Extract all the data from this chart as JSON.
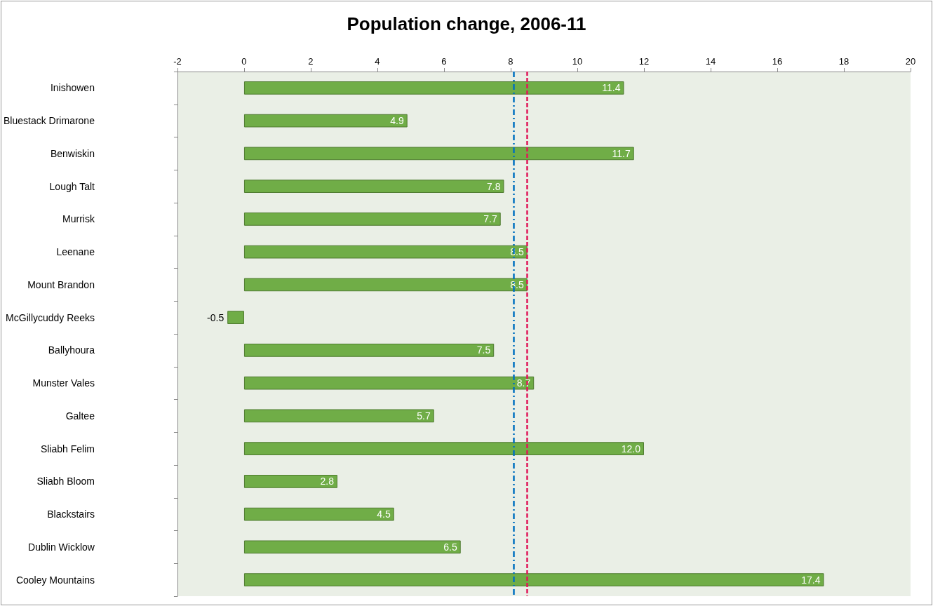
{
  "chart_data": {
    "type": "bar",
    "orientation": "horizontal",
    "title": "Population change, 2006-11",
    "categories": [
      "Inishowen",
      "Bluestack Drimarone",
      "Benwiskin",
      "Lough Talt",
      "Murrisk",
      "Leenane",
      "Mount Brandon",
      "McGillycuddy Reeks",
      "Ballyhoura",
      "Munster Vales",
      "Galtee",
      "Sliabh Felim",
      "Sliabh Bloom",
      "Blackstairs",
      "Dublin Wicklow",
      "Cooley Mountains"
    ],
    "values": [
      11.4,
      4.9,
      11.7,
      7.8,
      7.7,
      8.5,
      8.5,
      -0.5,
      7.5,
      8.7,
      5.7,
      12.0,
      2.8,
      4.5,
      6.5,
      17.4
    ],
    "value_labels": [
      "11.4",
      "4.9",
      "11.7",
      "7.8",
      "7.7",
      "8.5",
      "8.5",
      "-0.5",
      "7.5",
      "8.7",
      "5.7",
      "12.0",
      "2.8",
      "4.5",
      "6.5",
      "17.4"
    ],
    "color": "#70ad47",
    "xlim": [
      -2,
      20
    ],
    "xticks": [
      -2,
      0,
      2,
      4,
      6,
      8,
      10,
      12,
      14,
      16,
      18,
      20
    ],
    "ref_lines": [
      {
        "axis": "x",
        "value": 8.1,
        "color": "#0070c0",
        "line_style": "dashdot"
      },
      {
        "axis": "x",
        "value": 8.5,
        "color": "#e0195a",
        "line_style": "dashed"
      }
    ],
    "grid": false
  }
}
